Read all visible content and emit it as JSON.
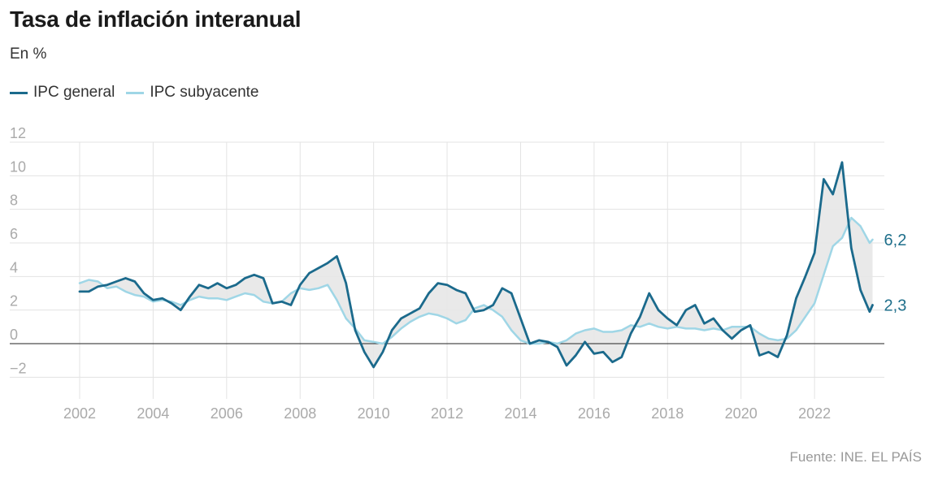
{
  "colors": {
    "general": "#1b6a8c",
    "core": "#9fd6e6",
    "fill": "#e7e7e7",
    "grid": "#e3e3e3",
    "zero": "#222222"
  },
  "chart_data": {
    "type": "line",
    "title": "Tasa de inflación interanual",
    "subtitle": "En %",
    "ylim": [
      -3,
      12
    ],
    "xlim": [
      2002,
      2023.9
    ],
    "y_ticks": [
      -2,
      0,
      2,
      4,
      6,
      8,
      10,
      12
    ],
    "y_tick_labels": [
      "−2",
      "0",
      "2",
      "4",
      "6",
      "8",
      "10",
      "12"
    ],
    "x_ticks": [
      2002,
      2004,
      2006,
      2008,
      2010,
      2012,
      2014,
      2016,
      2018,
      2020,
      2022
    ],
    "x_tick_labels": [
      "2002",
      "2004",
      "2006",
      "2008",
      "2010",
      "2012",
      "2014",
      "2016",
      "2018",
      "2020",
      "2022"
    ],
    "legend_position": "top-left",
    "shaded_between_series": true,
    "series": [
      {
        "name": "IPC general",
        "end_label": "2,3",
        "points": [
          [
            2002.0,
            3.1
          ],
          [
            2002.25,
            3.1
          ],
          [
            2002.5,
            3.4
          ],
          [
            2002.75,
            3.5
          ],
          [
            2003.0,
            3.7
          ],
          [
            2003.25,
            3.9
          ],
          [
            2003.5,
            3.7
          ],
          [
            2003.75,
            3.0
          ],
          [
            2004.0,
            2.6
          ],
          [
            2004.25,
            2.7
          ],
          [
            2004.5,
            2.4
          ],
          [
            2004.75,
            2.0
          ],
          [
            2005.0,
            2.8
          ],
          [
            2005.25,
            3.5
          ],
          [
            2005.5,
            3.3
          ],
          [
            2005.75,
            3.6
          ],
          [
            2006.0,
            3.3
          ],
          [
            2006.25,
            3.5
          ],
          [
            2006.5,
            3.9
          ],
          [
            2006.75,
            4.1
          ],
          [
            2007.0,
            3.9
          ],
          [
            2007.25,
            2.4
          ],
          [
            2007.5,
            2.5
          ],
          [
            2007.75,
            2.3
          ],
          [
            2008.0,
            3.5
          ],
          [
            2008.25,
            4.2
          ],
          [
            2008.5,
            4.5
          ],
          [
            2008.75,
            4.8
          ],
          [
            2009.0,
            5.2
          ],
          [
            2009.25,
            3.6
          ],
          [
            2009.5,
            0.8
          ],
          [
            2009.75,
            -0.5
          ],
          [
            2010.0,
            -1.4
          ],
          [
            2010.25,
            -0.5
          ],
          [
            2010.5,
            0.8
          ],
          [
            2010.75,
            1.5
          ],
          [
            2011.0,
            1.8
          ],
          [
            2011.25,
            2.1
          ],
          [
            2011.5,
            3.0
          ],
          [
            2011.75,
            3.6
          ],
          [
            2012.0,
            3.5
          ],
          [
            2012.25,
            3.2
          ],
          [
            2012.5,
            3.0
          ],
          [
            2012.75,
            1.9
          ],
          [
            2013.0,
            2.0
          ],
          [
            2013.25,
            2.3
          ],
          [
            2013.5,
            3.3
          ],
          [
            2013.75,
            3.0
          ],
          [
            2014.0,
            1.5
          ],
          [
            2014.25,
            0.0
          ],
          [
            2014.5,
            0.2
          ],
          [
            2014.75,
            0.1
          ],
          [
            2015.0,
            -0.2
          ],
          [
            2015.25,
            -1.3
          ],
          [
            2015.5,
            -0.7
          ],
          [
            2015.75,
            0.1
          ],
          [
            2016.0,
            -0.6
          ],
          [
            2016.25,
            -0.5
          ],
          [
            2016.5,
            -1.1
          ],
          [
            2016.75,
            -0.8
          ],
          [
            2017.0,
            0.6
          ],
          [
            2017.25,
            1.6
          ],
          [
            2017.5,
            3.0
          ],
          [
            2017.75,
            2.0
          ],
          [
            2018.0,
            1.5
          ],
          [
            2018.25,
            1.1
          ],
          [
            2018.5,
            2.0
          ],
          [
            2018.75,
            2.3
          ],
          [
            2019.0,
            1.2
          ],
          [
            2019.25,
            1.5
          ],
          [
            2019.5,
            0.8
          ],
          [
            2019.75,
            0.3
          ],
          [
            2020.0,
            0.8
          ],
          [
            2020.25,
            1.1
          ],
          [
            2020.5,
            -0.7
          ],
          [
            2020.75,
            -0.5
          ],
          [
            2021.0,
            -0.8
          ],
          [
            2021.25,
            0.5
          ],
          [
            2021.5,
            2.7
          ],
          [
            2021.75,
            4.0
          ],
          [
            2022.0,
            5.4
          ],
          [
            2022.25,
            9.8
          ],
          [
            2022.5,
            8.9
          ],
          [
            2022.75,
            10.8
          ],
          [
            2023.0,
            5.7
          ],
          [
            2023.25,
            3.2
          ],
          [
            2023.5,
            1.9
          ],
          [
            2023.58,
            2.3
          ]
        ]
      },
      {
        "name": "IPC subyacente",
        "end_label": "6,2",
        "points": [
          [
            2002.0,
            3.6
          ],
          [
            2002.25,
            3.8
          ],
          [
            2002.5,
            3.7
          ],
          [
            2002.75,
            3.3
          ],
          [
            2003.0,
            3.4
          ],
          [
            2003.25,
            3.1
          ],
          [
            2003.5,
            2.9
          ],
          [
            2003.75,
            2.8
          ],
          [
            2004.0,
            2.5
          ],
          [
            2004.25,
            2.6
          ],
          [
            2004.5,
            2.5
          ],
          [
            2004.75,
            2.3
          ],
          [
            2005.0,
            2.6
          ],
          [
            2005.25,
            2.8
          ],
          [
            2005.5,
            2.7
          ],
          [
            2005.75,
            2.7
          ],
          [
            2006.0,
            2.6
          ],
          [
            2006.25,
            2.8
          ],
          [
            2006.5,
            3.0
          ],
          [
            2006.75,
            2.9
          ],
          [
            2007.0,
            2.5
          ],
          [
            2007.25,
            2.4
          ],
          [
            2007.5,
            2.5
          ],
          [
            2007.75,
            3.0
          ],
          [
            2008.0,
            3.3
          ],
          [
            2008.25,
            3.2
          ],
          [
            2008.5,
            3.3
          ],
          [
            2008.75,
            3.5
          ],
          [
            2009.0,
            2.6
          ],
          [
            2009.25,
            1.5
          ],
          [
            2009.5,
            0.9
          ],
          [
            2009.75,
            0.2
          ],
          [
            2010.0,
            0.1
          ],
          [
            2010.25,
            0.0
          ],
          [
            2010.5,
            0.4
          ],
          [
            2010.75,
            0.9
          ],
          [
            2011.0,
            1.3
          ],
          [
            2011.25,
            1.6
          ],
          [
            2011.5,
            1.8
          ],
          [
            2011.75,
            1.7
          ],
          [
            2012.0,
            1.5
          ],
          [
            2012.25,
            1.2
          ],
          [
            2012.5,
            1.4
          ],
          [
            2012.75,
            2.1
          ],
          [
            2013.0,
            2.3
          ],
          [
            2013.25,
            2.0
          ],
          [
            2013.5,
            1.6
          ],
          [
            2013.75,
            0.8
          ],
          [
            2014.0,
            0.2
          ],
          [
            2014.25,
            0.0
          ],
          [
            2014.5,
            0.0
          ],
          [
            2014.75,
            0.1
          ],
          [
            2015.0,
            0.0
          ],
          [
            2015.25,
            0.2
          ],
          [
            2015.5,
            0.6
          ],
          [
            2015.75,
            0.8
          ],
          [
            2016.0,
            0.9
          ],
          [
            2016.25,
            0.7
          ],
          [
            2016.5,
            0.7
          ],
          [
            2016.75,
            0.8
          ],
          [
            2017.0,
            1.1
          ],
          [
            2017.25,
            1.0
          ],
          [
            2017.5,
            1.2
          ],
          [
            2017.75,
            1.0
          ],
          [
            2018.0,
            0.9
          ],
          [
            2018.25,
            1.0
          ],
          [
            2018.5,
            0.9
          ],
          [
            2018.75,
            0.9
          ],
          [
            2019.0,
            0.8
          ],
          [
            2019.25,
            0.9
          ],
          [
            2019.5,
            0.8
          ],
          [
            2019.75,
            1.0
          ],
          [
            2020.0,
            1.0
          ],
          [
            2020.25,
            1.0
          ],
          [
            2020.5,
            0.6
          ],
          [
            2020.75,
            0.3
          ],
          [
            2021.0,
            0.2
          ],
          [
            2021.25,
            0.3
          ],
          [
            2021.5,
            0.8
          ],
          [
            2021.75,
            1.6
          ],
          [
            2022.0,
            2.4
          ],
          [
            2022.25,
            4.1
          ],
          [
            2022.5,
            5.8
          ],
          [
            2022.75,
            6.3
          ],
          [
            2023.0,
            7.5
          ],
          [
            2023.25,
            7.0
          ],
          [
            2023.5,
            6.0
          ],
          [
            2023.58,
            6.2
          ]
        ]
      }
    ]
  },
  "source": "Fuente: INE. EL PAÍS"
}
